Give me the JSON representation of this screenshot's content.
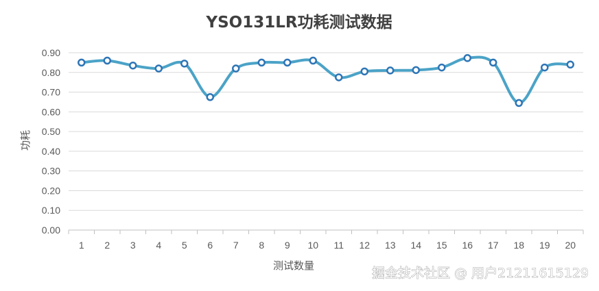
{
  "chart_data": {
    "type": "line",
    "title": "YSO131LR功耗测试数据",
    "xlabel": "测试数量",
    "ylabel": "功耗",
    "categories": [
      "1",
      "2",
      "3",
      "4",
      "5",
      "6",
      "7",
      "8",
      "9",
      "10",
      "11",
      "12",
      "13",
      "14",
      "15",
      "16",
      "17",
      "18",
      "19",
      "20"
    ],
    "series": [
      {
        "values": [
          0.85,
          0.86,
          0.835,
          0.82,
          0.845,
          0.675,
          0.82,
          0.85,
          0.85,
          0.86,
          0.775,
          0.805,
          0.81,
          0.812,
          0.825,
          0.873,
          0.85,
          0.645,
          0.825,
          0.84
        ],
        "color": "#4ba3c7"
      }
    ],
    "ylim": [
      0,
      0.9
    ],
    "yticks": [
      "0.00",
      "0.10",
      "0.20",
      "0.30",
      "0.40",
      "0.50",
      "0.60",
      "0.70",
      "0.80",
      "0.90"
    ],
    "grid": true,
    "legend": "none",
    "smooth": true
  },
  "watermark": "掘金技术社区 @ 用户21211615129"
}
